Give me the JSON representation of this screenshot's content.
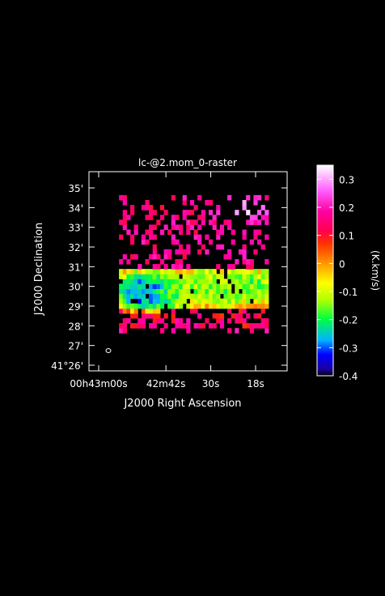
{
  "chart_data": {
    "type": "heatmap",
    "title": "lc-@2.mom_0-raster",
    "xlabel": "J2000 Right Ascension",
    "ylabel": "J2000 Declination",
    "x_ticks": [
      {
        "ra_sec": 60,
        "label": "00h43m00s"
      },
      {
        "ra_sec": 42,
        "label": "42m42s"
      },
      {
        "ra_sec": 30,
        "label": "30s"
      },
      {
        "ra_sec": 18,
        "label": "18s"
      }
    ],
    "y_ticks": [
      {
        "dec_arcmin": 26,
        "label": "41°26'"
      },
      {
        "dec_arcmin": 27,
        "label": "27'"
      },
      {
        "dec_arcmin": 28,
        "label": "28'"
      },
      {
        "dec_arcmin": 29,
        "label": "29'"
      },
      {
        "dec_arcmin": 30,
        "label": "30'"
      },
      {
        "dec_arcmin": 31,
        "label": "31'"
      },
      {
        "dec_arcmin": 32,
        "label": "32'"
      },
      {
        "dec_arcmin": 33,
        "label": "33'"
      },
      {
        "dec_arcmin": 34,
        "label": "34'"
      },
      {
        "dec_arcmin": 35,
        "label": "35'"
      }
    ],
    "colorbar": {
      "label": "(K.km/s)",
      "min": -0.4,
      "max": 0.35,
      "ticks": [
        {
          "value": 0.3,
          "label": "0.3"
        },
        {
          "value": 0.2,
          "label": "0.2"
        },
        {
          "value": 0.1,
          "label": "0.1"
        },
        {
          "value": 0.0,
          "label": "0"
        },
        {
          "value": -0.1,
          "label": "-0.1"
        },
        {
          "value": -0.2,
          "label": "-0.2"
        },
        {
          "value": -0.3,
          "label": "-0.3"
        },
        {
          "value": -0.4,
          "label": "-0.4"
        }
      ],
      "colormap": "rainbow (blue-green-yellow-orange-red-magenta-white)"
    },
    "map_regions": [
      {
        "ra_sec": 47.5,
        "dec_arcmin": 30.0,
        "value": -0.34
      },
      {
        "ra_sec": 47.5,
        "dec_arcmin": 29.4,
        "value": -0.36
      },
      {
        "ra_sec": 40.0,
        "dec_arcmin": 29.6,
        "value": -0.18
      },
      {
        "ra_sec": 32.0,
        "dec_arcmin": 30.1,
        "value": -0.17
      },
      {
        "ra_sec": 25.0,
        "dec_arcmin": 29.8,
        "value": -0.18
      },
      {
        "ra_sec": 20.0,
        "dec_arcmin": 30.1,
        "value": -0.2
      },
      {
        "ra_sec": 20.5,
        "dec_arcmin": 33.9,
        "value": 0.33
      },
      {
        "ra_sec": 35.0,
        "dec_arcmin": 28.0,
        "value": 0.12
      },
      {
        "ra_sec": 45.0,
        "dec_arcmin": 33.8,
        "value": 0.1
      }
    ]
  }
}
